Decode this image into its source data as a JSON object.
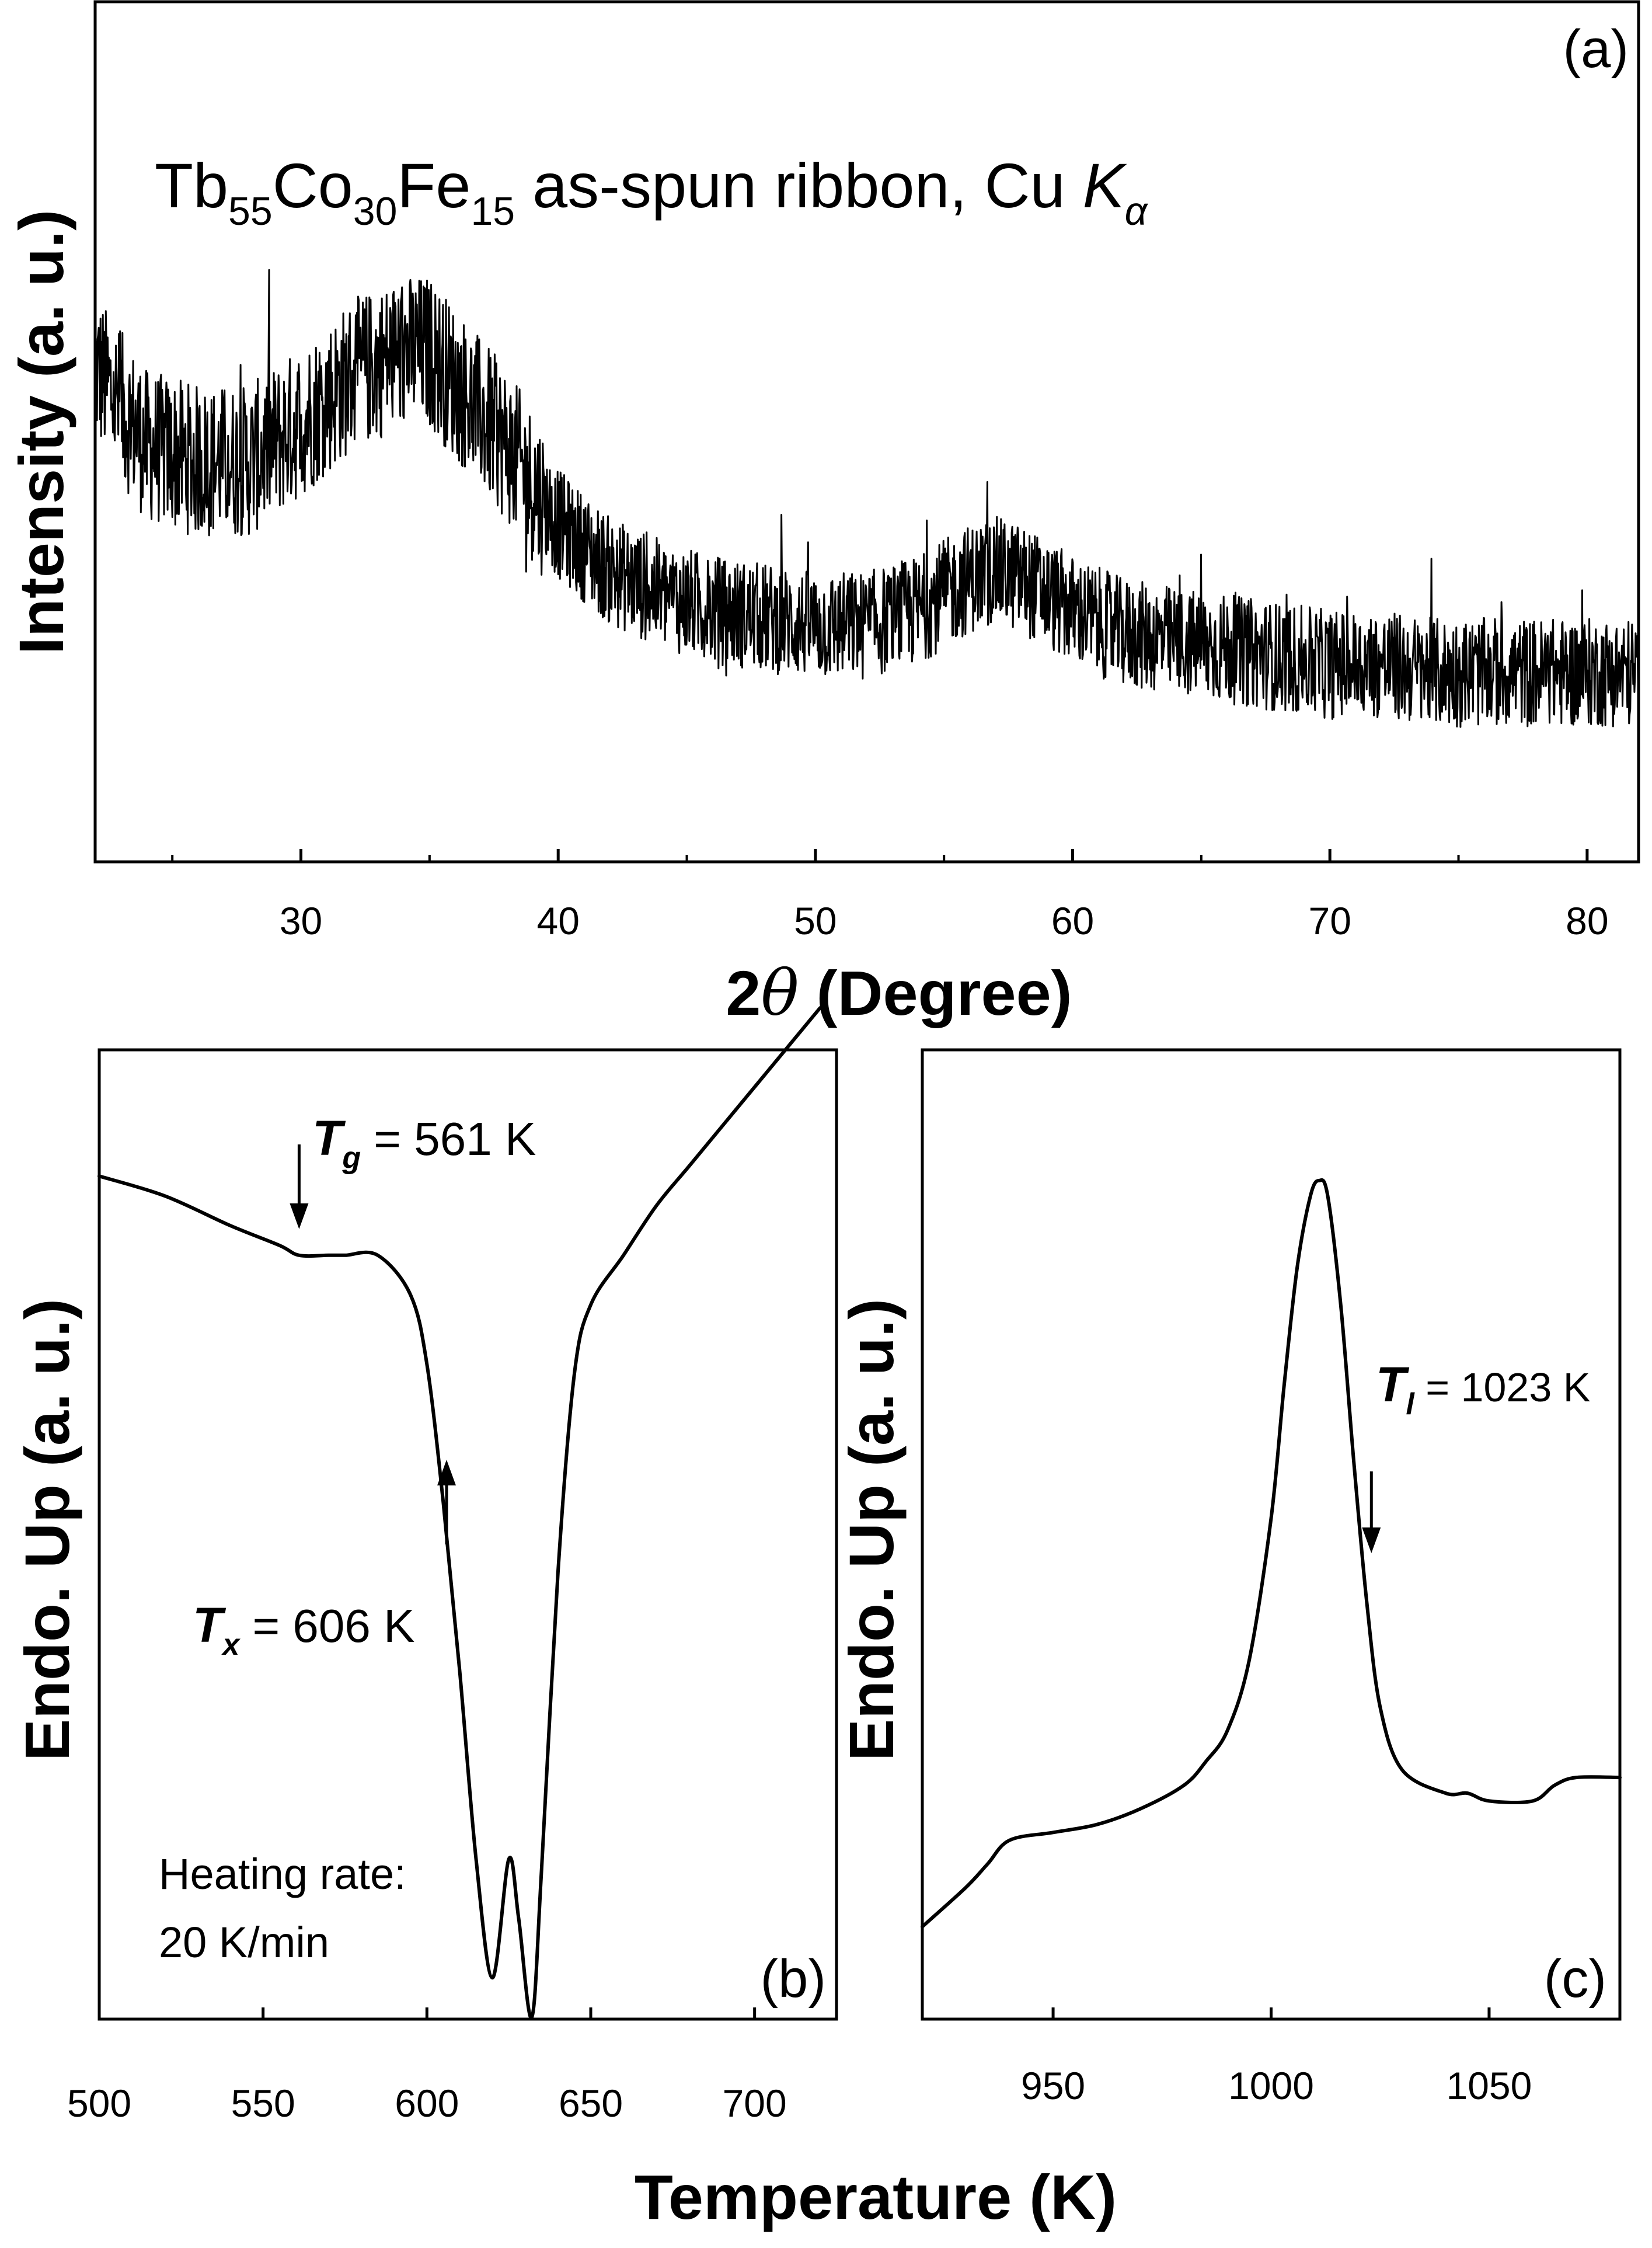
{
  "chart_data": [
    {
      "panel": "(a)",
      "type": "line",
      "title": "Tb55Co30Fe15 as-spun ribbon, Cu Kα",
      "title_parts": {
        "el1": "Tb",
        "sub1": "55",
        "el2": "Co",
        "sub2": "30",
        "el3": "Fe",
        "sub3": "15",
        "rest": " as-spun ribbon, Cu ",
        "k": "K",
        "alpha": "α"
      },
      "xlabel": "2θ (Degree)",
      "xlabel_parts": {
        "two": "2",
        "theta": "θ",
        "rest": " (Degree)"
      },
      "ylabel": "Intensity (a. u.)",
      "xlim": [
        22,
        82
      ],
      "ylim": [
        0,
        100
      ],
      "xticks": [
        30,
        40,
        50,
        60,
        70,
        80
      ],
      "xtick_labels": [
        "30",
        "40",
        "50",
        "60",
        "70",
        "80"
      ],
      "x": [
        22,
        24,
        26,
        28,
        30,
        32,
        34,
        35,
        36,
        38,
        40,
        42,
        44,
        46,
        48,
        50,
        52,
        54,
        56,
        57,
        58,
        60,
        62,
        64,
        66,
        68,
        70,
        72,
        74,
        76,
        78,
        80,
        82
      ],
      "y": [
        62,
        52,
        50,
        50,
        55,
        61,
        64,
        64,
        60,
        52,
        42,
        36,
        33,
        31,
        30,
        29,
        29,
        31,
        35,
        36,
        35,
        31,
        28,
        27,
        26,
        25,
        24,
        24,
        23,
        23,
        23,
        23,
        23
      ],
      "noise_amplitude": 7
    },
    {
      "panel": "(b)",
      "type": "line",
      "ylabel": "Endo. Up (a. u.)",
      "xlim": [
        500,
        725
      ],
      "ylim": [
        0,
        100
      ],
      "xticks": [
        500,
        550,
        600,
        650,
        700
      ],
      "xtick_labels": [
        "500",
        "550",
        "600",
        "650",
        "700"
      ],
      "x": [
        500,
        520,
        540,
        555,
        561,
        570,
        575,
        585,
        595,
        600,
        605,
        610,
        615,
        620,
        625,
        628,
        632,
        635,
        640,
        645,
        650,
        660,
        670,
        680,
        690,
        700,
        710,
        720
      ],
      "y": [
        85,
        83,
        80,
        78,
        77,
        77,
        77,
        77,
        73,
        66,
        52,
        35,
        16,
        4,
        16,
        10,
        0,
        15,
        45,
        65,
        72,
        77,
        82,
        86,
        90,
        94,
        98,
        102
      ],
      "annotations": {
        "tg": {
          "symbol": "T",
          "sub": "g",
          "value": " = 561 K",
          "x": 561
        },
        "tx": {
          "symbol": "T",
          "sub": "x",
          "value": " = 606 K",
          "x": 606
        },
        "rate_line1": "Heating rate:",
        "rate_line2": "20 K/min"
      }
    },
    {
      "panel": "(c)",
      "type": "line",
      "xlim": [
        920,
        1080
      ],
      "ylim": [
        0,
        100
      ],
      "xticks": [
        950,
        1000,
        1050
      ],
      "xtick_labels": [
        "950",
        "1000",
        "1050"
      ],
      "x": [
        920,
        930,
        935,
        940,
        950,
        960,
        970,
        980,
        985,
        990,
        995,
        1000,
        1003,
        1006,
        1009,
        1011,
        1013,
        1016,
        1019,
        1022,
        1025,
        1030,
        1040,
        1045,
        1050,
        1060,
        1065,
        1070,
        1080
      ],
      "y": [
        3,
        8,
        11,
        14,
        15,
        16,
        18,
        21,
        24,
        28,
        37,
        55,
        72,
        87,
        96,
        98,
        96,
        82,
        62,
        44,
        31,
        23,
        20,
        20,
        19,
        19,
        21,
        22,
        22
      ],
      "annotations": {
        "tl": {
          "symbol": "T",
          "sub": "l",
          "value": " = 1023 K",
          "x": 1023
        }
      }
    }
  ],
  "bottom_xlabel": "Temperature (K)"
}
